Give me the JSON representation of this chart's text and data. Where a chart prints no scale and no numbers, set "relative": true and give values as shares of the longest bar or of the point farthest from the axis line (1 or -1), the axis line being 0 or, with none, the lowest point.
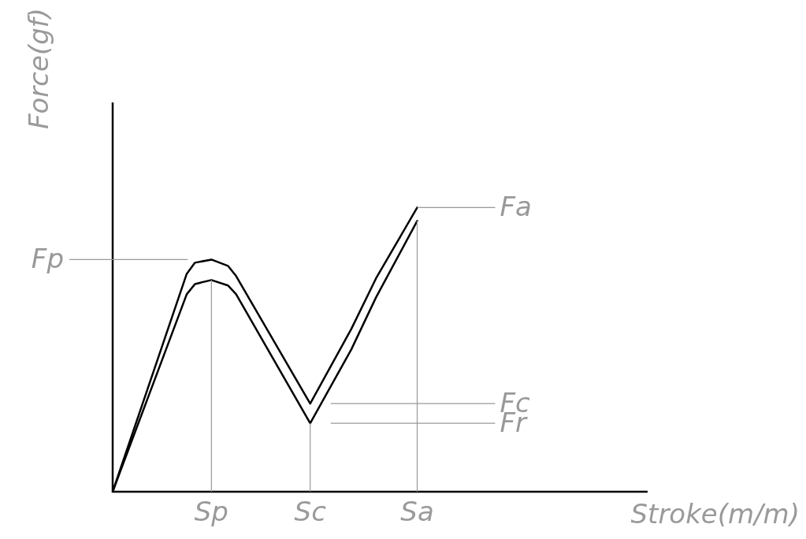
{
  "chart_data": {
    "type": "line",
    "relative": true,
    "xlabel": "Stroke(m/m)",
    "ylabel": "Force(gf)",
    "categories": [
      null,
      null,
      null,
      null,
      null,
      null,
      null,
      null,
      null,
      null,
      null,
      null,
      "Sp",
      null,
      null,
      null,
      null,
      null,
      null,
      null,
      null,
      null,
      null,
      null,
      "Sc",
      null,
      null,
      null,
      null,
      null,
      null,
      null,
      null,
      null,
      null,
      null,
      null,
      "Sa",
      null,
      null,
      null,
      null,
      null,
      null,
      null,
      null,
      null,
      null,
      null,
      null,
      null,
      null,
      null,
      null,
      null,
      null,
      null,
      null,
      null,
      null,
      null,
      null,
      null,
      null,
      null,
      null
    ],
    "series": [
      {
        "color": "#000000",
        "values": [
          0,
          null,
          null,
          null,
          null,
          null,
          null,
          null,
          null,
          0.767,
          0.806,
          null,
          0.817,
          null,
          0.795,
          0.759,
          null,
          null,
          null,
          null,
          null,
          null,
          null,
          null,
          0.31,
          null,
          null,
          null,
          null,
          0.573,
          null,
          null,
          0.751,
          null,
          null,
          null,
          null,
          1,
          null,
          null,
          null,
          null,
          null,
          null,
          null,
          null,
          null,
          null,
          null,
          null,
          null,
          null,
          null,
          null,
          null,
          null,
          null,
          null,
          null,
          null,
          null,
          null,
          null,
          null,
          null,
          null
        ]
      },
      {
        "color": "#000000",
        "values": [
          0,
          null,
          null,
          null,
          null,
          null,
          null,
          null,
          null,
          0.695,
          0.731,
          null,
          0.745,
          null,
          0.726,
          0.695,
          null,
          null,
          null,
          null,
          null,
          null,
          null,
          null,
          0.241,
          null,
          null,
          null,
          null,
          0.501,
          null,
          null,
          0.684,
          null,
          null,
          null,
          null,
          0.953,
          null,
          null,
          null,
          null,
          null,
          null,
          null,
          null,
          null,
          null,
          null,
          null,
          null,
          null,
          null,
          null,
          null,
          null,
          null,
          null,
          null,
          null,
          null,
          null,
          null,
          null,
          null,
          null
        ]
      }
    ],
    "ref_lines": [
      {
        "axis": "y",
        "value": 0.817,
        "label": "Fp",
        "color": "#999999"
      },
      {
        "axis": "y",
        "value": 1,
        "label": "Fa",
        "color": "#999999"
      },
      {
        "axis": "y",
        "value": 0.31,
        "label": "Fc",
        "color": "#999999"
      },
      {
        "axis": "y",
        "value": 0.241,
        "label": "Fr",
        "color": "#999999"
      },
      {
        "axis": "x",
        "value": "Sp",
        "color": "#999999"
      },
      {
        "axis": "x",
        "value": "Sc",
        "color": "#999999"
      },
      {
        "axis": "x",
        "value": "Sa",
        "color": "#999999"
      }
    ],
    "grid": false,
    "legend": false,
    "marker": "none",
    "line_style": "solid"
  }
}
